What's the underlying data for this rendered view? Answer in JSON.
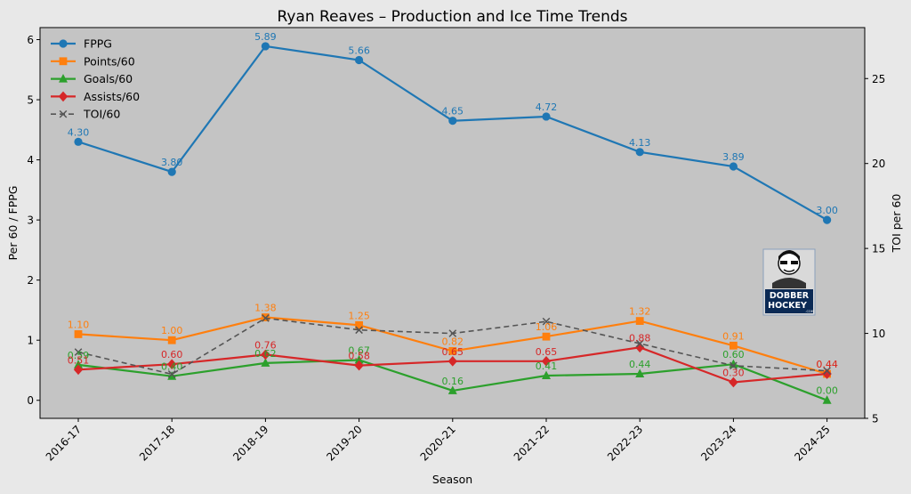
{
  "chart_data": {
    "type": "line",
    "title": "Ryan Reaves – Production and Ice Time Trends",
    "xlabel": "Season",
    "ylabel_left": "Per 60 / FPPG",
    "ylabel_right": "TOI per 60",
    "categories": [
      "2016-17",
      "2017-18",
      "2018-19",
      "2019-20",
      "2020-21",
      "2021-22",
      "2022-23",
      "2023-24",
      "2024-25"
    ],
    "ylim_left": [
      -0.3,
      6.2
    ],
    "ylim_right": [
      5,
      28
    ],
    "yticks_left": [
      0,
      1,
      2,
      3,
      4,
      5,
      6
    ],
    "yticks_right": [
      5,
      10,
      15,
      20,
      25
    ],
    "grid": false,
    "legend_position": "top-left",
    "series": [
      {
        "name": "FPPG",
        "axis": "left",
        "color": "#1f77b4",
        "marker": "circle",
        "dashed": false,
        "labelled": true,
        "values": [
          4.3,
          3.8,
          5.89,
          5.66,
          4.65,
          4.72,
          4.13,
          3.89,
          3.0
        ],
        "labels": [
          "4.30",
          "3.80",
          "5.89",
          "5.66",
          "4.65",
          "4.72",
          "4.13",
          "3.89",
          "3.00"
        ]
      },
      {
        "name": "Points/60",
        "axis": "left",
        "color": "#ff7f0e",
        "marker": "square",
        "dashed": false,
        "labelled": true,
        "values": [
          1.1,
          1.0,
          1.38,
          1.25,
          0.82,
          1.06,
          1.32,
          0.91,
          0.44
        ],
        "labels": [
          "1.10",
          "1.00",
          "1.38",
          "1.25",
          "0.82",
          "1.06",
          "1.32",
          "0.91",
          "0.44"
        ]
      },
      {
        "name": "Goals/60",
        "axis": "left",
        "color": "#2ca02c",
        "marker": "triangle",
        "dashed": false,
        "labelled": true,
        "values": [
          0.59,
          0.4,
          0.62,
          0.67,
          0.16,
          0.41,
          0.44,
          0.6,
          0.0
        ],
        "labels": [
          "0.59",
          "0.40",
          "0.62",
          "0.67",
          "0.16",
          "0.41",
          "0.44",
          "0.60",
          "0.00"
        ]
      },
      {
        "name": "Assists/60",
        "axis": "left",
        "color": "#d62728",
        "marker": "diamond",
        "dashed": false,
        "labelled": true,
        "values": [
          0.51,
          0.6,
          0.76,
          0.58,
          0.65,
          0.65,
          0.88,
          0.3,
          0.44
        ],
        "labels": [
          "0.51",
          "0.60",
          "0.76",
          "0.58",
          "0.65",
          "0.65",
          "0.88",
          "0.30",
          "0.44"
        ]
      },
      {
        "name": "TOI/60",
        "axis": "right",
        "color": "#555555",
        "marker": "x",
        "dashed": true,
        "labelled": false,
        "values": [
          8.9,
          7.6,
          10.9,
          10.2,
          10.0,
          10.7,
          9.4,
          8.1,
          7.8
        ]
      }
    ]
  },
  "logo": {
    "line1": "DOBBER",
    "line2": "HOCKEY",
    "line3": ".COM"
  }
}
